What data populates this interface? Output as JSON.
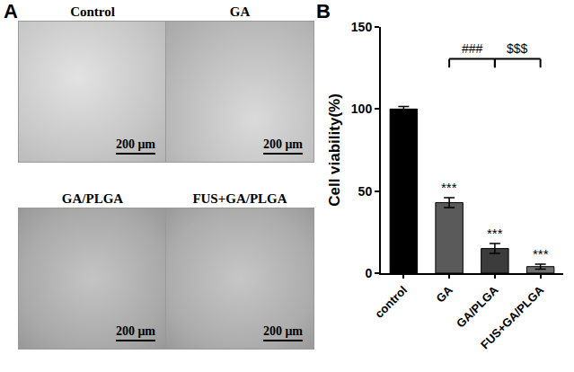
{
  "chart_data": {
    "type": "bar",
    "categories": [
      "control",
      "GA",
      "GA/PLGA",
      "FUS+GA/PLGA"
    ],
    "values": [
      100,
      43,
      15,
      4
    ],
    "errors": [
      1.5,
      3,
      3,
      1.5
    ],
    "colors": [
      "#000000",
      "#5a5a5a",
      "#3c3c3c",
      "#6e6e6e"
    ],
    "y_label": "Cell viability(%)",
    "ylim": [
      0,
      150
    ],
    "yticks": [
      0,
      50,
      100,
      150
    ],
    "grid": false,
    "annotations": [
      {
        "category": "GA",
        "text": "***"
      },
      {
        "category": "GA/PLGA",
        "text": "***"
      },
      {
        "category": "FUS+GA/PLGA",
        "text": "***"
      }
    ],
    "brackets": [
      {
        "from": "GA",
        "to": "GA/PLGA",
        "text": "###"
      },
      {
        "from": "GA/PLGA",
        "to": "FUS+GA/PLGA",
        "text": "$$$"
      }
    ]
  },
  "figure": {
    "panel_labels": [
      "A",
      "B"
    ],
    "images": [
      {
        "title": "Control",
        "scale_bar": "200 μm"
      },
      {
        "title": "GA",
        "scale_bar": "200 μm"
      },
      {
        "title": "GA/PLGA",
        "scale_bar": "200 μm"
      },
      {
        "title": "FUS+GA/PLGA",
        "scale_bar": "200 μm"
      }
    ]
  }
}
